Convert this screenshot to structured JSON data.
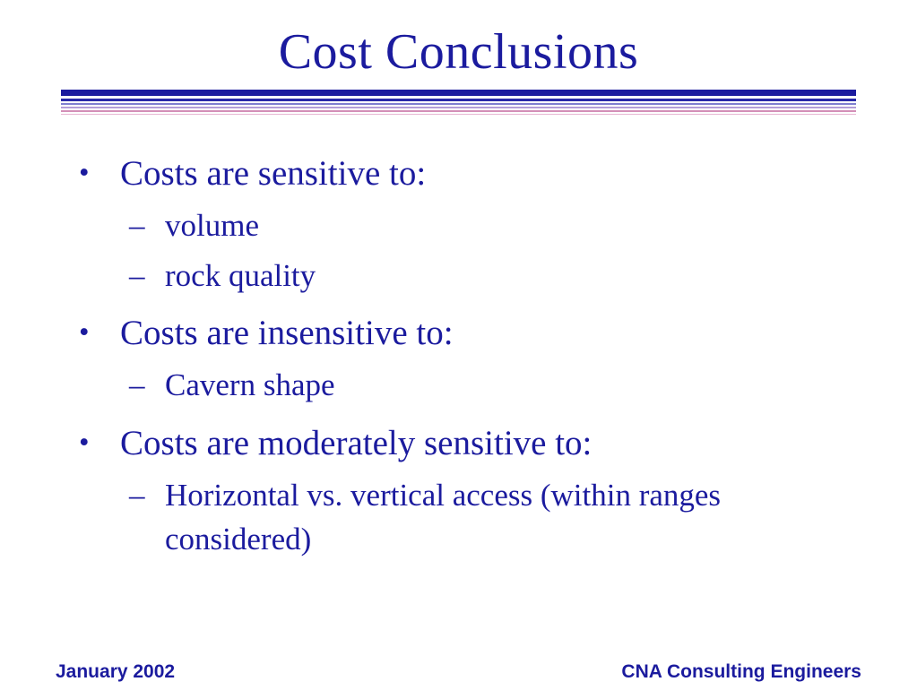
{
  "slide": {
    "title": "Cost Conclusions",
    "markers": {
      "bullet": "•",
      "dash": "–"
    },
    "bullets": [
      {
        "label": "Costs are sensitive to:",
        "subs": [
          "volume",
          "rock quality"
        ]
      },
      {
        "label": "Costs are insensitive to:",
        "subs": [
          "Cavern shape"
        ]
      },
      {
        "label": "Costs are moderately sensitive to:",
        "subs": [
          "Horizontal vs. vertical access (within ranges considered)"
        ]
      }
    ],
    "footer": {
      "left": "January 2002",
      "right": "CNA Consulting Engineers"
    }
  },
  "colors": {
    "text": "#1b1b9e",
    "stripe-navy": "#1b1b9e",
    "stripe-blue": "#2a2aa8",
    "stripe-periwinkle": "#7f7fd0",
    "stripe-lavender": "#b39dd8",
    "stripe-pink": "#d48fb8",
    "stripe-lightpink": "#e8b8d4"
  },
  "divider": {
    "stripes": [
      {
        "color": "#1b1b9e",
        "height": 7,
        "gap": 0
      },
      {
        "color": "#2a2aa8",
        "height": 3,
        "gap": 3
      },
      {
        "color": "#7f7fd0",
        "height": 2,
        "gap": 2
      },
      {
        "color": "#b39dd8",
        "height": 2,
        "gap": 2
      },
      {
        "color": "#d48fb8",
        "height": 2,
        "gap": 2
      },
      {
        "color": "#e8b8d4",
        "height": 1,
        "gap": 2
      }
    ]
  }
}
